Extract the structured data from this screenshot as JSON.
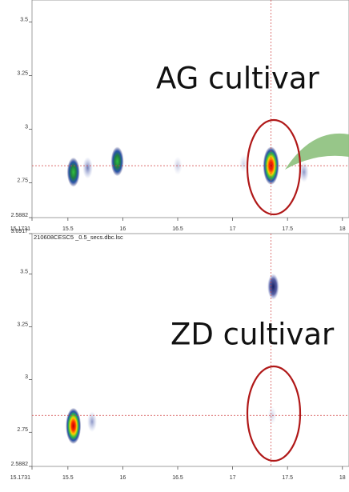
{
  "chart_data": [
    {
      "type": "heatmap",
      "annotation": "AG cultivar",
      "xlim": [
        15.1731,
        18.06
      ],
      "ylim": [
        2.5882,
        3.6917
      ],
      "xticks": [
        15.1731,
        15.5,
        16,
        16.5,
        17,
        17.5,
        18
      ],
      "yticks": [
        2.5882,
        2.75,
        3,
        3.25,
        3.5
      ],
      "crosshair": {
        "x": 17.35,
        "y": 2.83
      },
      "spots": [
        {
          "x": 15.55,
          "y": 2.8,
          "intensity": 0.6
        },
        {
          "x": 15.68,
          "y": 2.82,
          "intensity": 0.25
        },
        {
          "x": 15.95,
          "y": 2.85,
          "intensity": 0.6
        },
        {
          "x": 16.5,
          "y": 2.83,
          "intensity": 0.1
        },
        {
          "x": 17.35,
          "y": 2.83,
          "intensity": 1
        },
        {
          "x": 17.65,
          "y": 2.8,
          "intensity": 0.2
        },
        {
          "x": 17.1,
          "y": 2.84,
          "intensity": 0.08
        }
      ]
    },
    {
      "type": "heatmap",
      "annotation": "ZD cultivar",
      "subtitle": "210608CESC5 _0.5_secs.dbc.lsc",
      "xlim": [
        15.1731,
        18.06
      ],
      "ylim": [
        2.5882,
        3.6917
      ],
      "xticks": [
        15.1731,
        15.5,
        16,
        16.5,
        17,
        17.5,
        18
      ],
      "yticks": [
        2.5882,
        2.75,
        3,
        3.25,
        3.5,
        3.6917
      ],
      "crosshair": {
        "x": 17.35,
        "y": 2.83
      },
      "spots": [
        {
          "x": 15.55,
          "y": 2.78,
          "intensity": 0.9
        },
        {
          "x": 15.72,
          "y": 2.8,
          "intensity": 0.2
        },
        {
          "x": 17.37,
          "y": 3.44,
          "intensity": 0.45
        },
        {
          "x": 17.36,
          "y": 2.83,
          "intensity": 0.08
        }
      ]
    }
  ]
}
